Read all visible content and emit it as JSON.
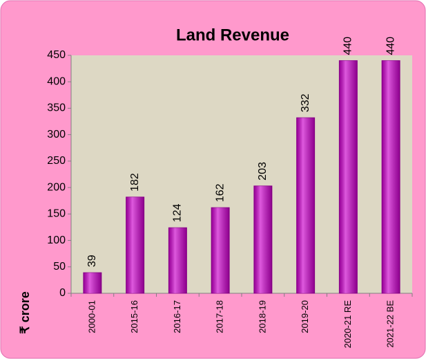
{
  "chart_data": {
    "type": "bar",
    "title": "Land Revenue",
    "y_label": "₹ crore",
    "categories": [
      "2000-01",
      "2015-16",
      "2016-17",
      "2017-18",
      "2018-19",
      "2019-20",
      "2020-21 RE",
      "2021-22 BE"
    ],
    "values": [
      39,
      182,
      124,
      162,
      203,
      332,
      440,
      440
    ],
    "color": "#cc00cc",
    "ylim": [
      0,
      450
    ],
    "yticks": [
      0,
      50,
      100,
      150,
      200,
      250,
      300,
      350,
      400,
      450
    ]
  }
}
